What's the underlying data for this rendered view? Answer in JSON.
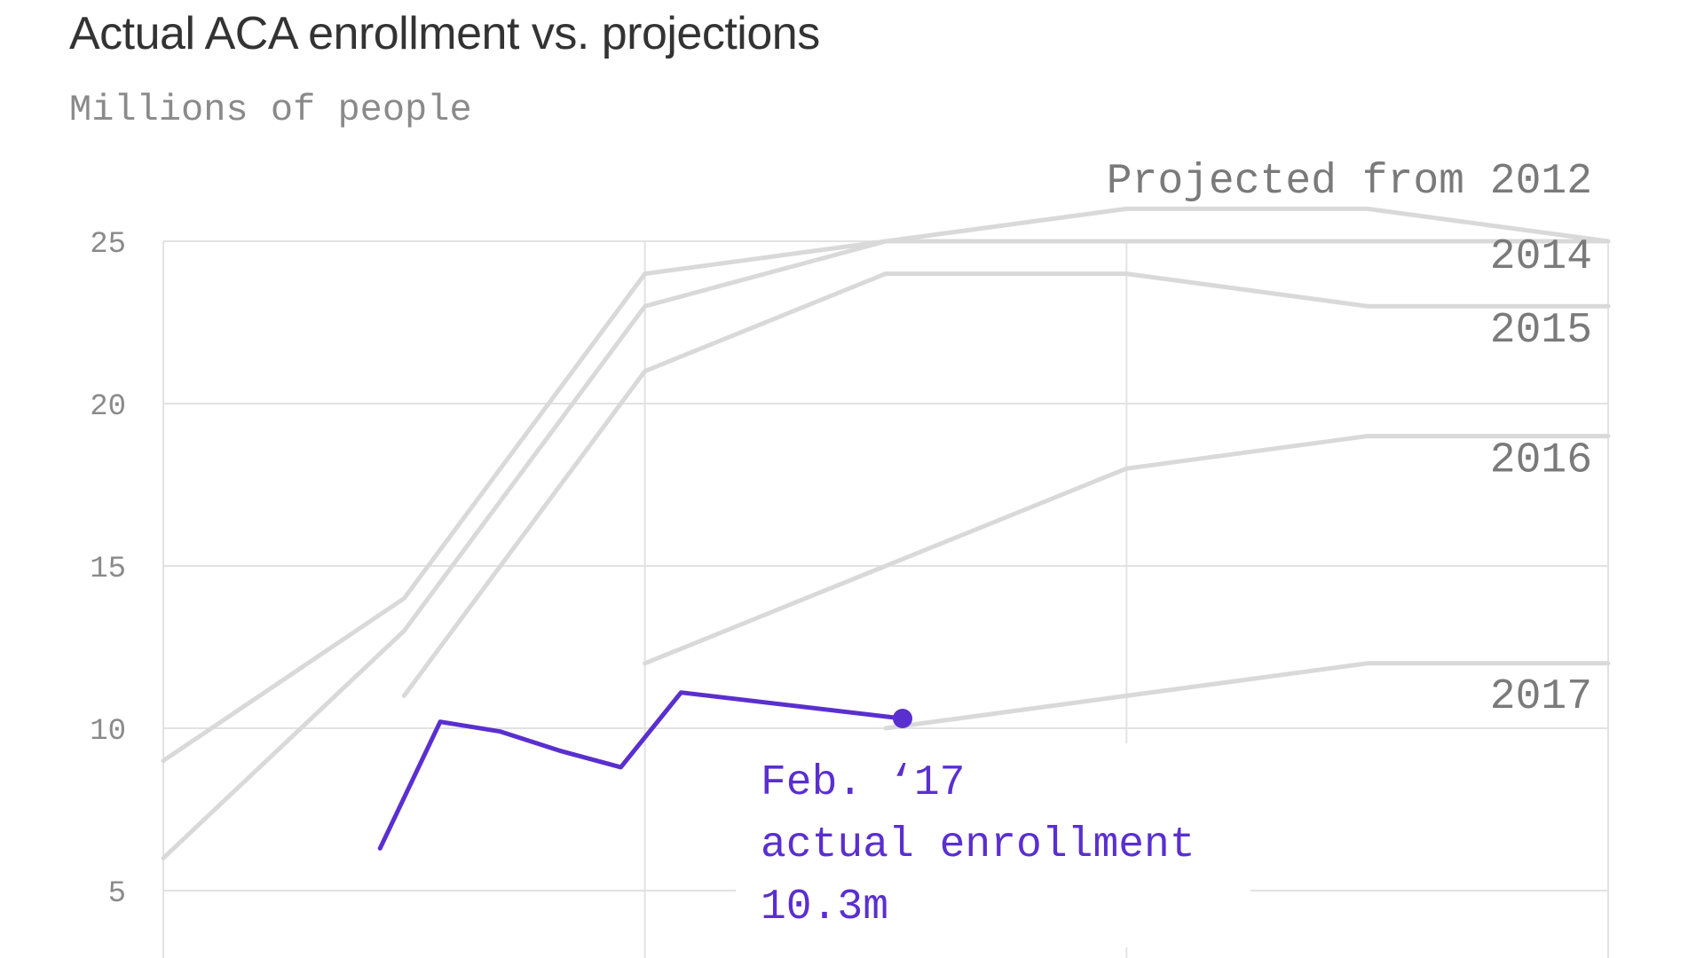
{
  "chart_data": {
    "type": "line",
    "title": "Actual ACA enrollment vs. projections",
    "subtitle": "Millions of people",
    "ylim": [
      5,
      25
    ],
    "xlim": [
      2013,
      2019
    ],
    "yticks": [
      5,
      10,
      15,
      20,
      25
    ],
    "grid": true,
    "series": [
      {
        "name": "Projected from 2012",
        "x": [
          2013,
          2014,
          2015,
          2016,
          2017,
          2018,
          2019
        ],
        "values": [
          9,
          14,
          24,
          25,
          26,
          26,
          25
        ]
      },
      {
        "name": "2014",
        "x": [
          2013,
          2014,
          2015,
          2016,
          2017,
          2018,
          2019
        ],
        "values": [
          6,
          13,
          23,
          25,
          25,
          25,
          25
        ]
      },
      {
        "name": "2015",
        "x": [
          2014,
          2015,
          2016,
          2017,
          2018,
          2019
        ],
        "values": [
          11,
          21,
          24,
          24,
          23,
          23
        ]
      },
      {
        "name": "2016",
        "x": [
          2015,
          2016,
          2017,
          2018,
          2019
        ],
        "values": [
          12,
          15,
          18,
          19,
          19
        ]
      },
      {
        "name": "2017",
        "x": [
          2016,
          2017,
          2018,
          2019
        ],
        "values": [
          10,
          11,
          12,
          12
        ]
      },
      {
        "name": "",
        "x": [
          2013.9,
          2014.15,
          2014.4,
          2014.65,
          2014.9,
          2015.15,
          2016.07
        ],
        "values": [
          6.3,
          10.2,
          9.9,
          9.3,
          8.8,
          11.1,
          10.3
        ]
      }
    ],
    "annotation": {
      "lines": [
        "Feb. ‘17",
        "actual enrollment",
        "10.3m"
      ],
      "x": 2016.07,
      "y": 10.3
    },
    "colors": {
      "projection": "#d9d9d9",
      "actual": "#5a2fcf",
      "grid": "#e2e2e2",
      "tick_text": "#8a8a8a"
    }
  }
}
